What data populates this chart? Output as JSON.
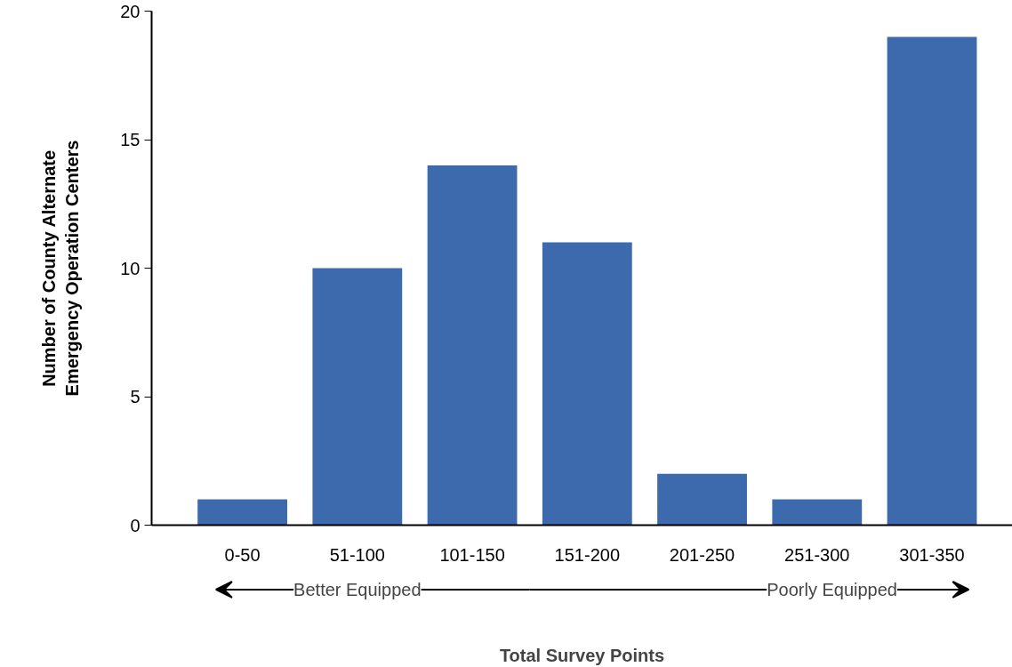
{
  "chart_data": {
    "type": "bar",
    "xlabel": "Total Survey Points",
    "ylabel": "Number of County Alternate\nEmergency Operation Centers",
    "categories": [
      "0-50",
      "51-100",
      "101-150",
      "151-200",
      "201-250",
      "251-300",
      "301-350"
    ],
    "values": [
      1,
      10,
      14,
      11,
      2,
      1,
      19
    ],
    "color": "#3d69ad",
    "ylim": [
      0,
      20
    ],
    "yticks": [
      0,
      5,
      10,
      15,
      20
    ],
    "annotations": [
      "Better Equipped",
      "Poorly Equipped"
    ],
    "grid": false
  }
}
